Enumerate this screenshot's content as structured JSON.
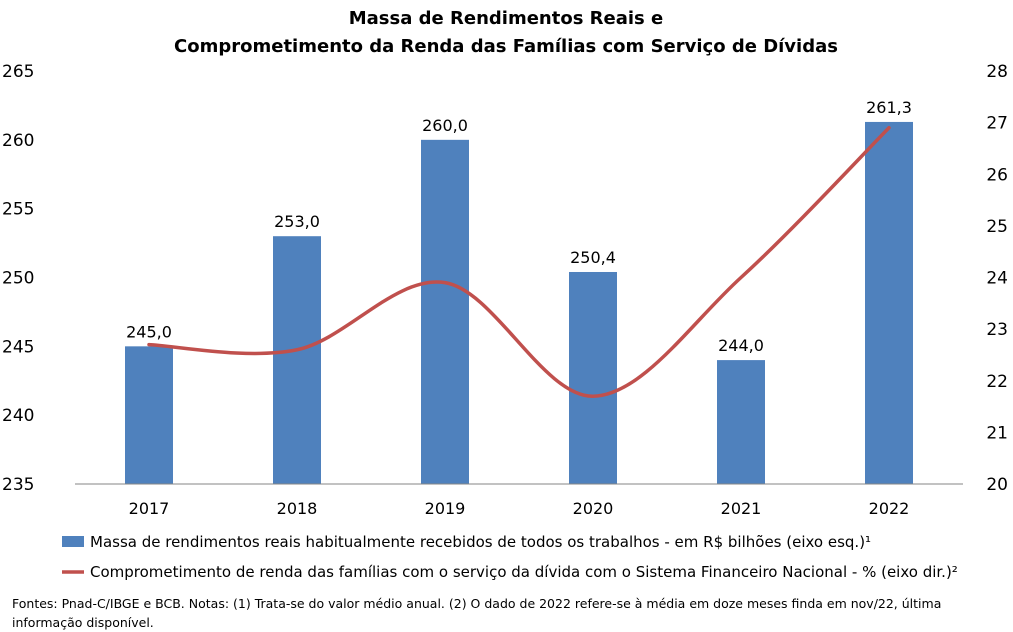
{
  "chart_data": {
    "type": "bar",
    "title_line1": "Massa de Rendimentos Reais e",
    "title_line2": "Comprometimento da Renda das Famílias com Serviço de Dívidas",
    "categories": [
      "2017",
      "2018",
      "2019",
      "2020",
      "2021",
      "2022"
    ],
    "bar_series": {
      "name": "Massa de rendimentos reais habitualmente recebidos de todos os trabalhos - em R$ bilhões (eixo esq.)¹",
      "values": [
        245.0,
        253.0,
        260.0,
        250.4,
        244.0,
        261.3
      ],
      "labels": [
        "245,0",
        "253,0",
        "260,0",
        "250,4",
        "244,0",
        "261,3"
      ],
      "color": "#4F81BD"
    },
    "line_series": {
      "name": "Comprometimento de renda das famílias com o serviço da dívida com o Sistema Financeiro Nacional - % (eixo dir.)²",
      "values": [
        22.7,
        22.6,
        23.9,
        21.7,
        24.0,
        26.9
      ],
      "color": "#C0504D"
    },
    "y_left": {
      "range": [
        235,
        265
      ],
      "ticks": [
        "235",
        "240",
        "245",
        "250",
        "255",
        "260",
        "265"
      ]
    },
    "y_right": {
      "range": [
        20,
        28
      ],
      "ticks": [
        "20",
        "21",
        "22",
        "23",
        "24",
        "25",
        "26",
        "27",
        "28"
      ]
    },
    "grid": false,
    "legend_position": "bottom"
  },
  "source_note": "Fontes: Pnad-C/IBGE e BCB. Notas: (1) Trata-se do valor médio anual. (2) O dado de 2022 refere-se à média em doze meses finda em nov/22, última informação disponível."
}
